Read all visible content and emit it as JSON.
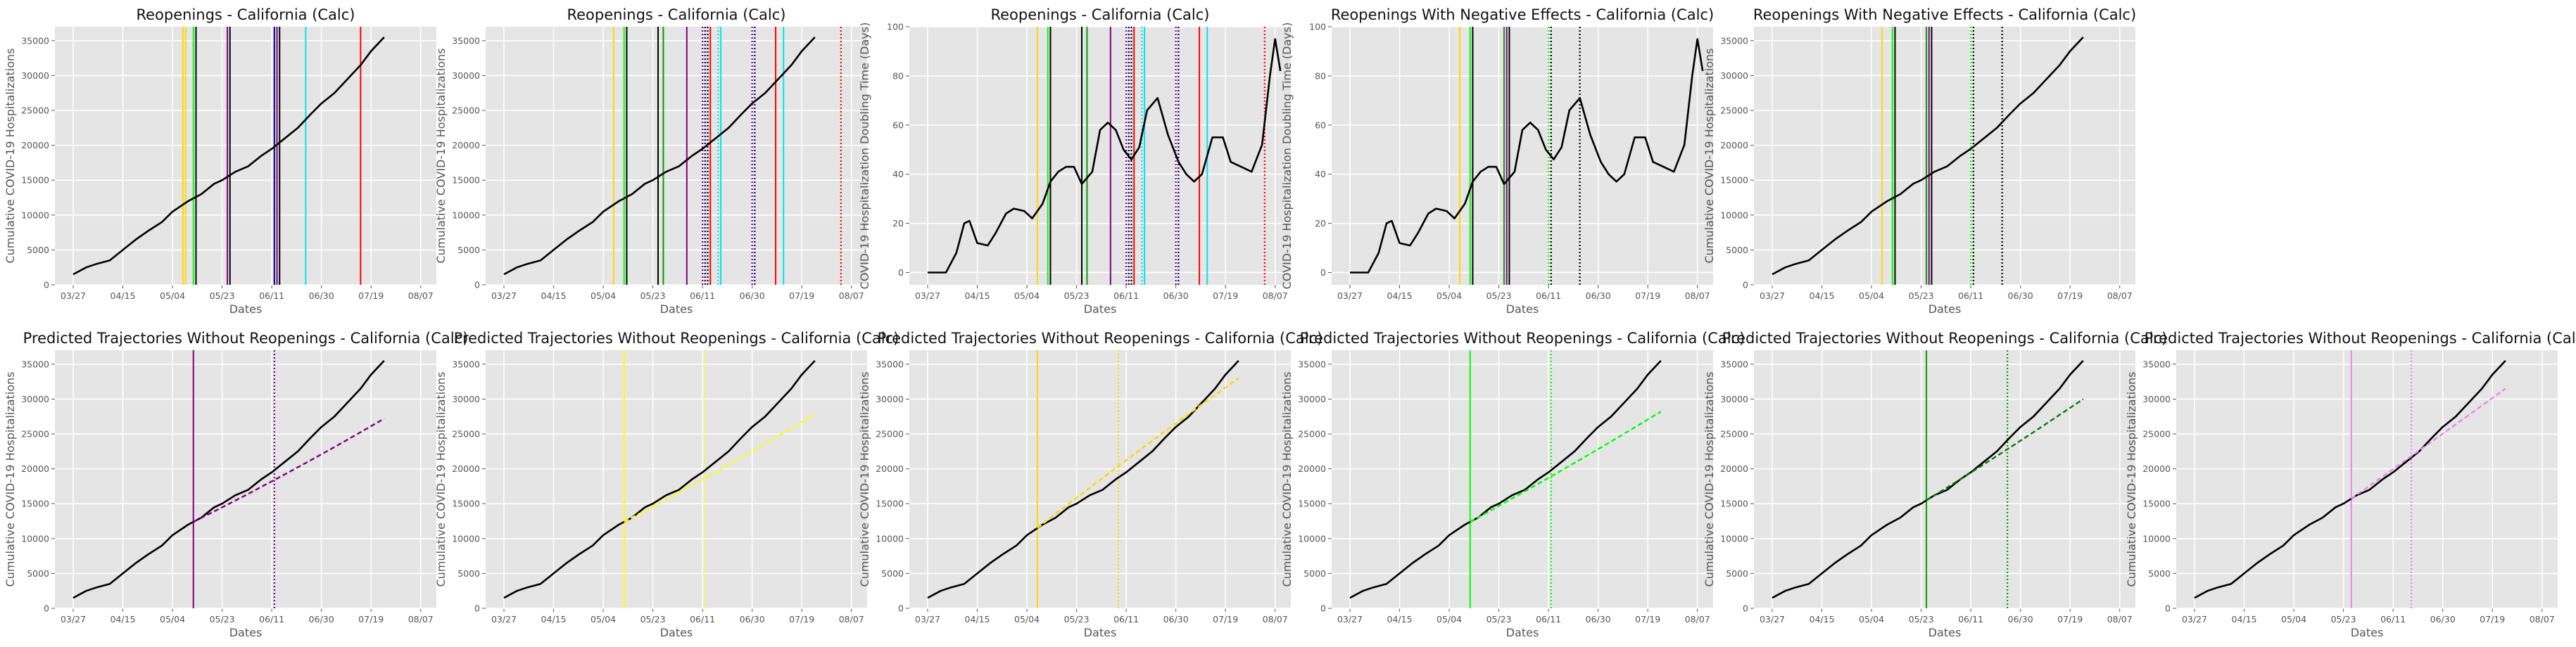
{
  "charts": [
    {
      "title": "Reopenings - California (Calc)",
      "ylabel": "Cumulative COVID-19 Hospitalizations",
      "xlabel": "Dates",
      "xticks": [
        "03/27",
        "04/15",
        "05/04",
        "05/23",
        "06/11",
        "06/30",
        "07/19",
        "08/07"
      ],
      "yticks": [
        "0",
        "5000",
        "10000",
        "15000",
        "20000",
        "25000",
        "30000",
        "35000"
      ],
      "vlines": [
        {
          "date": "2020-05-08",
          "color": "#ffd700",
          "style": "solid"
        },
        {
          "date": "2020-05-09",
          "color": "#ffd700",
          "style": "solid"
        },
        {
          "date": "2020-05-12",
          "color": "#00ff00",
          "style": "solid"
        },
        {
          "date": "2020-05-13",
          "color": "#000000",
          "style": "solid"
        },
        {
          "date": "2020-05-25",
          "color": "#800080",
          "style": "solid"
        },
        {
          "date": "2020-05-26",
          "color": "#000000",
          "style": "solid"
        },
        {
          "date": "2020-06-12",
          "color": "#000080",
          "style": "solid"
        },
        {
          "date": "2020-06-13",
          "color": "#800080",
          "style": "solid"
        },
        {
          "date": "2020-06-14",
          "color": "#000000",
          "style": "solid"
        },
        {
          "date": "2020-06-24",
          "color": "#00e5ee",
          "style": "solid"
        },
        {
          "date": "2020-07-15",
          "color": "#ff0000",
          "style": "solid"
        }
      ]
    },
    {
      "title": "Reopenings - California (Calc)",
      "ylabel": "Cumulative COVID-19 Hospitalizations",
      "xlabel": "Dates",
      "xticks": [
        "03/27",
        "04/15",
        "05/04",
        "05/23",
        "06/11",
        "06/30",
        "07/19",
        "08/07"
      ],
      "yticks": [
        "0",
        "5000",
        "10000",
        "15000",
        "20000",
        "25000",
        "30000",
        "35000"
      ],
      "vlines": [
        {
          "date": "2020-05-08",
          "color": "#ffd700",
          "style": "solid"
        },
        {
          "date": "2020-05-12",
          "color": "#00ff00",
          "style": "solid"
        },
        {
          "date": "2020-05-13",
          "color": "#000000",
          "style": "solid"
        },
        {
          "date": "2020-05-25",
          "color": "#000000",
          "style": "solid"
        },
        {
          "date": "2020-05-27",
          "color": "#00a000",
          "style": "solid"
        },
        {
          "date": "2020-06-05",
          "color": "#800080",
          "style": "solid"
        },
        {
          "date": "2020-06-11",
          "color": "#800080",
          "style": "dotted"
        },
        {
          "date": "2020-06-12",
          "color": "#000080",
          "style": "dotted"
        },
        {
          "date": "2020-06-13",
          "color": "#000000",
          "style": "dotted"
        },
        {
          "date": "2020-06-14",
          "color": "#ff0000",
          "style": "solid"
        },
        {
          "date": "2020-06-17",
          "color": "#00e5ee",
          "style": "dotted"
        },
        {
          "date": "2020-06-18",
          "color": "#00e5ee",
          "style": "solid"
        },
        {
          "date": "2020-06-30",
          "color": "#800080",
          "style": "dotted"
        },
        {
          "date": "2020-07-01",
          "color": "#000080",
          "style": "dotted"
        },
        {
          "date": "2020-07-09",
          "color": "#ff0000",
          "style": "solid"
        },
        {
          "date": "2020-07-12",
          "color": "#00e5ee",
          "style": "solid"
        },
        {
          "date": "2020-08-03",
          "color": "#ff0000",
          "style": "dotted"
        }
      ]
    },
    {
      "title": "Reopenings - California (Calc)",
      "ylabel": "COVID-19 Hospitalization Doubling Time (Days)",
      "xlabel": "Dates",
      "xticks": [
        "03/27",
        "04/15",
        "05/04",
        "05/23",
        "06/11",
        "06/30",
        "07/19",
        "08/07"
      ],
      "yticks": [
        "0",
        "20",
        "40",
        "60",
        "80",
        "100"
      ],
      "vlines": [
        {
          "date": "2020-05-08",
          "color": "#ffd700",
          "style": "solid"
        },
        {
          "date": "2020-05-12",
          "color": "#00ff00",
          "style": "solid"
        },
        {
          "date": "2020-05-13",
          "color": "#000000",
          "style": "solid"
        },
        {
          "date": "2020-05-25",
          "color": "#000000",
          "style": "solid"
        },
        {
          "date": "2020-05-27",
          "color": "#00a000",
          "style": "solid"
        },
        {
          "date": "2020-06-05",
          "color": "#800080",
          "style": "solid"
        },
        {
          "date": "2020-06-11",
          "color": "#800080",
          "style": "dotted"
        },
        {
          "date": "2020-06-12",
          "color": "#000080",
          "style": "dotted"
        },
        {
          "date": "2020-06-13",
          "color": "#000000",
          "style": "dotted"
        },
        {
          "date": "2020-06-14",
          "color": "#ff0000",
          "style": "solid"
        },
        {
          "date": "2020-06-17",
          "color": "#00e5ee",
          "style": "dotted"
        },
        {
          "date": "2020-06-18",
          "color": "#00e5ee",
          "style": "solid"
        },
        {
          "date": "2020-06-30",
          "color": "#800080",
          "style": "dotted"
        },
        {
          "date": "2020-07-01",
          "color": "#000080",
          "style": "dotted"
        },
        {
          "date": "2020-07-09",
          "color": "#ff0000",
          "style": "solid"
        },
        {
          "date": "2020-07-12",
          "color": "#00e5ee",
          "style": "solid"
        },
        {
          "date": "2020-08-03",
          "color": "#ff0000",
          "style": "dotted"
        }
      ]
    },
    {
      "title": "Reopenings With Negative Effects - California (Calc)",
      "ylabel": "COVID-19 Hospitalization Doubling Time (Days)",
      "xlabel": "Dates",
      "xticks": [
        "03/27",
        "04/15",
        "05/04",
        "05/23",
        "06/11",
        "06/30",
        "07/19",
        "08/07"
      ],
      "yticks": [
        "0",
        "20",
        "40",
        "60",
        "80",
        "100"
      ],
      "vlines": [
        {
          "date": "2020-05-08",
          "color": "#ffd700",
          "style": "solid"
        },
        {
          "date": "2020-05-12",
          "color": "#00ff00",
          "style": "solid"
        },
        {
          "date": "2020-05-13",
          "color": "#000000",
          "style": "solid"
        },
        {
          "date": "2020-05-25",
          "color": "#00a000",
          "style": "solid"
        },
        {
          "date": "2020-05-26",
          "color": "#800080",
          "style": "solid"
        },
        {
          "date": "2020-05-27",
          "color": "#000000",
          "style": "solid"
        },
        {
          "date": "2020-06-11",
          "color": "#00ff00",
          "style": "dotted"
        },
        {
          "date": "2020-06-12",
          "color": "#000000",
          "style": "dotted"
        },
        {
          "date": "2020-06-23",
          "color": "#000000",
          "style": "dotted"
        }
      ]
    },
    {
      "title": "Reopenings With Negative Effects - California (Calc)",
      "ylabel": "Cumulative COVID-19 Hospitalizations",
      "xlabel": "Dates",
      "xticks": [
        "03/27",
        "04/15",
        "05/04",
        "05/23",
        "06/11",
        "06/30",
        "07/19",
        "08/07"
      ],
      "yticks": [
        "0",
        "5000",
        "10000",
        "15000",
        "20000",
        "25000",
        "30000",
        "35000"
      ],
      "vlines": [
        {
          "date": "2020-05-08",
          "color": "#ffd700",
          "style": "solid"
        },
        {
          "date": "2020-05-12",
          "color": "#00ff00",
          "style": "solid"
        },
        {
          "date": "2020-05-13",
          "color": "#000000",
          "style": "solid"
        },
        {
          "date": "2020-05-25",
          "color": "#00a000",
          "style": "solid"
        },
        {
          "date": "2020-05-26",
          "color": "#800080",
          "style": "solid"
        },
        {
          "date": "2020-05-27",
          "color": "#000000",
          "style": "solid"
        },
        {
          "date": "2020-06-11",
          "color": "#00ff00",
          "style": "dotted"
        },
        {
          "date": "2020-06-12",
          "color": "#000000",
          "style": "dotted"
        },
        {
          "date": "2020-06-23",
          "color": "#000000",
          "style": "dotted"
        }
      ]
    },
    {
      "title": "Predicted Trajectories Without Reopenings - California (Calc)",
      "ylabel": "Cumulative COVID-19 Hospitalizations",
      "xlabel": "Dates",
      "xticks": [
        "03/27",
        "04/15",
        "05/04",
        "05/23",
        "06/11",
        "06/30",
        "07/19",
        "08/07"
      ],
      "yticks": [
        "0",
        "5000",
        "10000",
        "15000",
        "20000",
        "25000",
        "30000",
        "35000"
      ],
      "vlines": [
        {
          "date": "2020-05-12",
          "color": "#800080",
          "style": "solid"
        },
        {
          "date": "2020-06-12",
          "color": "#800080",
          "style": "dotted"
        }
      ],
      "prediction": {
        "color": "#800080",
        "start": "2020-05-12",
        "end_value": 27200
      }
    },
    {
      "title": "Predicted Trajectories Without Reopenings - California (Calc)",
      "ylabel": "Cumulative COVID-19 Hospitalizations",
      "xlabel": "Dates",
      "xticks": [
        "03/27",
        "04/15",
        "05/04",
        "05/23",
        "06/11",
        "06/30",
        "07/19",
        "08/07"
      ],
      "yticks": [
        "0",
        "5000",
        "10000",
        "15000",
        "20000",
        "25000",
        "30000",
        "35000"
      ],
      "vlines": [
        {
          "date": "2020-05-12",
          "color": "#ffff00",
          "style": "solid"
        },
        {
          "date": "2020-06-12",
          "color": "#ffff00",
          "style": "dotted"
        }
      ],
      "prediction": {
        "color": "#ffff00",
        "start": "2020-05-12",
        "end_value": 27800
      }
    },
    {
      "title": "Predicted Trajectories Without Reopenings - California (Calc)",
      "ylabel": "Cumulative COVID-19 Hospitalizations",
      "xlabel": "Dates",
      "xticks": [
        "03/27",
        "04/15",
        "05/04",
        "05/23",
        "06/11",
        "06/30",
        "07/19",
        "08/07"
      ],
      "yticks": [
        "0",
        "5000",
        "10000",
        "15000",
        "20000",
        "25000",
        "30000",
        "35000"
      ],
      "vlines": [
        {
          "date": "2020-05-08",
          "color": "#ffd700",
          "style": "solid"
        },
        {
          "date": "2020-06-08",
          "color": "#ffd700",
          "style": "dotted"
        }
      ],
      "prediction": {
        "color": "#ffd700",
        "start": "2020-05-08",
        "end_value": 33000
      }
    },
    {
      "title": "Predicted Trajectories Without Reopenings - California (Calc)",
      "ylabel": "Cumulative COVID-19 Hospitalizations",
      "xlabel": "Dates",
      "xticks": [
        "03/27",
        "04/15",
        "05/04",
        "05/23",
        "06/11",
        "06/30",
        "07/19",
        "08/07"
      ],
      "yticks": [
        "0",
        "5000",
        "10000",
        "15000",
        "20000",
        "25000",
        "30000",
        "35000"
      ],
      "vlines": [
        {
          "date": "2020-05-12",
          "color": "#00ff00",
          "style": "solid"
        },
        {
          "date": "2020-06-12",
          "color": "#00ff00",
          "style": "dotted"
        }
      ],
      "prediction": {
        "color": "#00ff00",
        "start": "2020-05-12",
        "end_value": 28200
      }
    },
    {
      "title": "Predicted Trajectories Without Reopenings - California (Calc)",
      "ylabel": "Cumulative COVID-19 Hospitalizations",
      "xlabel": "Dates",
      "xticks": [
        "03/27",
        "04/15",
        "05/04",
        "05/23",
        "06/11",
        "06/30",
        "07/19",
        "08/07"
      ],
      "yticks": [
        "0",
        "5000",
        "10000",
        "15000",
        "20000",
        "25000",
        "30000",
        "35000"
      ],
      "vlines": [
        {
          "date": "2020-05-25",
          "color": "#00a000",
          "style": "solid"
        },
        {
          "date": "2020-06-25",
          "color": "#00a000",
          "style": "dotted"
        }
      ],
      "prediction": {
        "color": "#008000",
        "start": "2020-05-25",
        "end_value": 30000
      }
    },
    {
      "title": "Predicted Trajectories Without Reopenings - California (Calc)",
      "ylabel": "Cumulative COVID-19 Hospitalizations",
      "xlabel": "Dates",
      "xticks": [
        "03/27",
        "04/15",
        "05/04",
        "05/23",
        "06/11",
        "06/30",
        "07/19",
        "08/07"
      ],
      "yticks": [
        "0",
        "5000",
        "10000",
        "15000",
        "20000",
        "25000",
        "30000",
        "35000"
      ],
      "vlines": [
        {
          "date": "2020-05-26",
          "color": "#ee82ee",
          "style": "solid"
        },
        {
          "date": "2020-06-18",
          "color": "#ee82ee",
          "style": "dotted"
        }
      ],
      "prediction": {
        "color": "#ee82ee",
        "start": "2020-05-26",
        "end_value": 31500
      }
    }
  ],
  "chart_data": {
    "type": "line",
    "cumulative_hospitalizations": {
      "x": [
        "2020-03-27",
        "2020-04-01",
        "2020-04-05",
        "2020-04-10",
        "2020-04-15",
        "2020-04-20",
        "2020-04-25",
        "2020-04-30",
        "2020-05-04",
        "2020-05-10",
        "2020-05-15",
        "2020-05-20",
        "2020-05-23",
        "2020-05-28",
        "2020-06-02",
        "2020-06-07",
        "2020-06-11",
        "2020-06-16",
        "2020-06-21",
        "2020-06-26",
        "2020-06-30",
        "2020-07-05",
        "2020-07-10",
        "2020-07-15",
        "2020-07-19",
        "2020-07-24"
      ],
      "y": [
        1500,
        2500,
        3000,
        3500,
        5000,
        6500,
        7800,
        9000,
        10500,
        12000,
        13000,
        14500,
        15000,
        16200,
        17000,
        18500,
        19500,
        21000,
        22500,
        24500,
        26000,
        27500,
        29500,
        31500,
        33500,
        35500
      ]
    },
    "doubling_time_days": {
      "x": [
        "2020-03-27",
        "2020-03-31",
        "2020-04-03",
        "2020-04-07",
        "2020-04-10",
        "2020-04-12",
        "2020-04-15",
        "2020-04-19",
        "2020-04-22",
        "2020-04-26",
        "2020-04-29",
        "2020-05-03",
        "2020-05-06",
        "2020-05-10",
        "2020-05-13",
        "2020-05-16",
        "2020-05-19",
        "2020-05-22",
        "2020-05-25",
        "2020-05-29",
        "2020-06-01",
        "2020-06-04",
        "2020-06-07",
        "2020-06-10",
        "2020-06-13",
        "2020-06-16",
        "2020-06-19",
        "2020-06-23",
        "2020-06-27",
        "2020-07-01",
        "2020-07-04",
        "2020-07-07",
        "2020-07-10",
        "2020-07-14",
        "2020-07-18",
        "2020-07-21",
        "2020-07-25",
        "2020-07-29",
        "2020-08-02",
        "2020-08-05",
        "2020-08-07",
        "2020-08-09"
      ],
      "y": [
        0,
        0,
        0,
        8,
        20,
        21,
        12,
        11,
        16,
        24,
        26,
        25,
        22,
        28,
        37,
        41,
        43,
        43,
        36,
        41,
        58,
        61,
        58,
        50,
        46,
        51,
        66,
        71,
        56,
        45,
        40,
        37,
        40,
        55,
        55,
        45,
        43,
        41,
        52,
        80,
        95,
        82
      ]
    },
    "xlim": [
      "2020-03-20",
      "2020-08-13"
    ],
    "ylim_cumulative": [
      0,
      37000
    ],
    "ylim_doubling": [
      -5,
      100
    ]
  }
}
